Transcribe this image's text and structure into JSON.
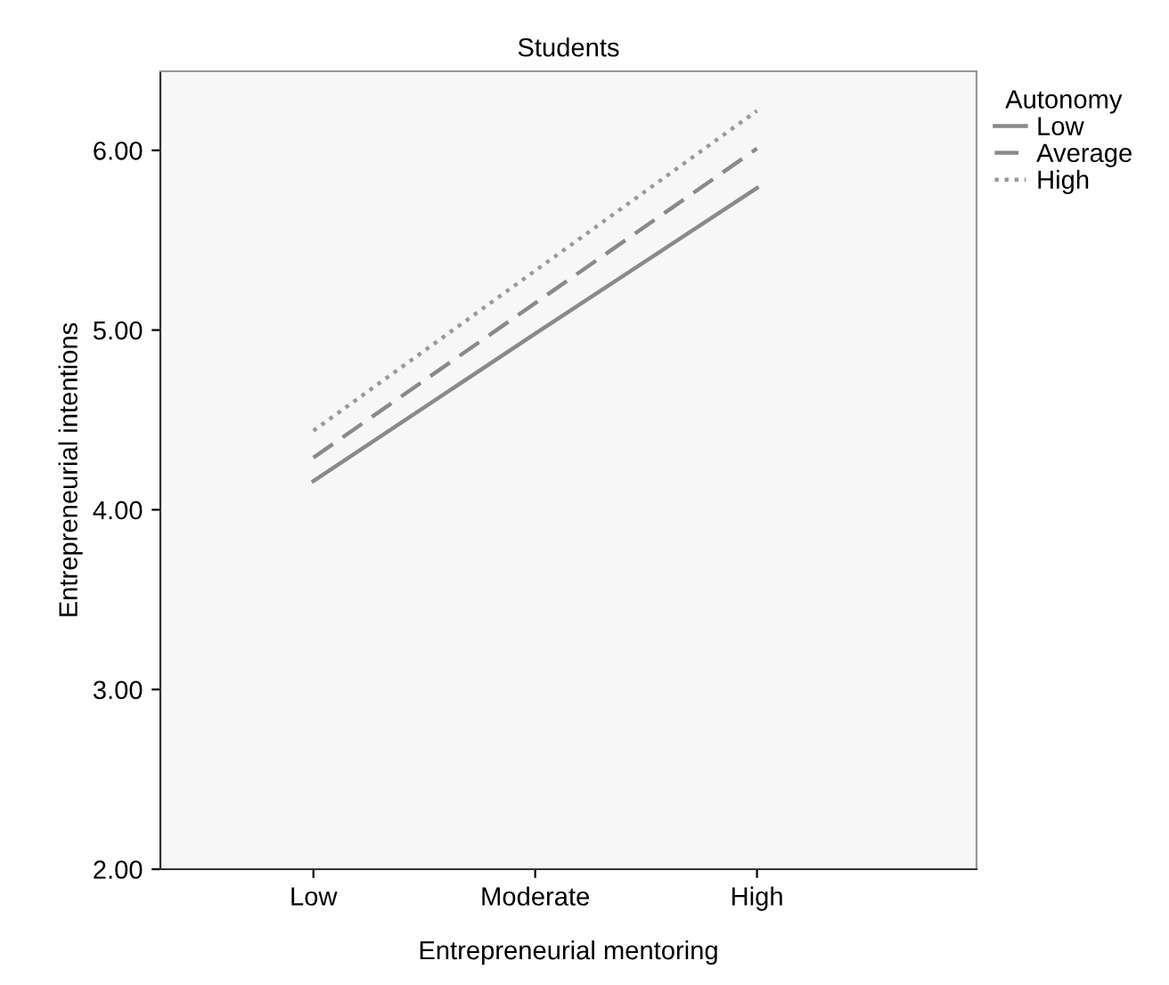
{
  "chart_data": {
    "type": "line",
    "title": "Students",
    "xlabel": "Entrepreneurial mentoring",
    "ylabel": "Entrepreneurial intentions",
    "legend_title": "Autonomy",
    "legend": "top right",
    "categories": [
      "Low",
      "Moderate",
      "High"
    ],
    "series": [
      {
        "name": "Low",
        "color": "#8a8a8a",
        "values": [
          4.16,
          4.98,
          5.79
        ],
        "line_style": "solid"
      },
      {
        "name": "Average",
        "color": "#8a8a8a",
        "values": [
          4.29,
          5.15,
          6.01
        ],
        "line_style": "dashed"
      },
      {
        "name": "High",
        "color": "#9a9a9a",
        "values": [
          4.44,
          5.33,
          6.22
        ],
        "line_style": "dotted"
      }
    ],
    "ylim": [
      2.0,
      6.44
    ],
    "yticks": [
      {
        "value": 2,
        "label": "2.00"
      },
      {
        "value": 3,
        "label": "3.00"
      },
      {
        "value": 4,
        "label": "4.00"
      },
      {
        "value": 5,
        "label": "5.00"
      },
      {
        "value": 6,
        "label": "6.00"
      }
    ],
    "grid": false,
    "marker": "none"
  }
}
